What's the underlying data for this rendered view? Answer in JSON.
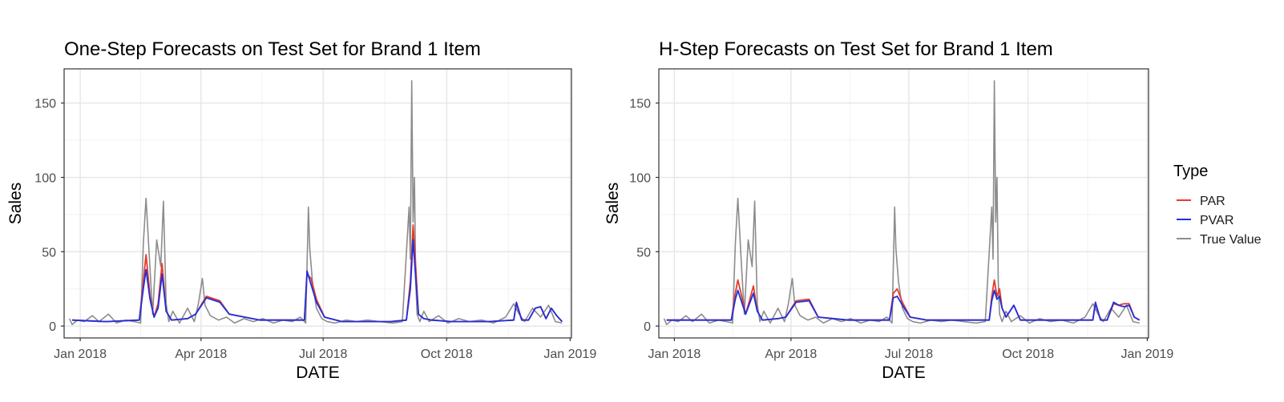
{
  "legend": {
    "title": "Type",
    "entries": [
      {
        "label": "PAR",
        "color": "#e8392b"
      },
      {
        "label": "PVAR",
        "color": "#1f2fe0"
      },
      {
        "label": "True Value",
        "color": "#8c8c8c"
      }
    ]
  },
  "colors": {
    "par": "#e8392b",
    "pvar": "#1f2fe0",
    "true": "#8c8c8c",
    "panel_border": "#333333",
    "grid_major": "#e6e6e6",
    "grid_minor": "#f2f2f2"
  },
  "chart_data": [
    {
      "type": "line",
      "title": "One-Step Forecasts on Test Set for Brand 1 Item",
      "xlabel": "DATE",
      "ylabel": "Sales",
      "xticks": [
        "Jan 2018",
        "Apr 2018",
        "Jul 2018",
        "Oct 2018",
        "Jan 2019"
      ],
      "xtick_dates": [
        "2018-01-01",
        "2018-04-01",
        "2018-07-01",
        "2018-10-01",
        "2019-01-01"
      ],
      "yticks": [
        0,
        50,
        100,
        150
      ],
      "xlim": [
        "2017-12-20",
        "2019-01-02"
      ],
      "ylim": [
        -8,
        173
      ],
      "grid": true,
      "series": [
        {
          "name": "True Value",
          "x": [
            "2017-12-24",
            "2017-12-26",
            "2017-12-30",
            "2018-01-04",
            "2018-01-10",
            "2018-01-15",
            "2018-01-22",
            "2018-01-28",
            "2018-02-04",
            "2018-02-10",
            "2018-02-15",
            "2018-02-17",
            "2018-02-19",
            "2018-02-22",
            "2018-02-24",
            "2018-02-27",
            "2018-03-02",
            "2018-03-04",
            "2018-03-06",
            "2018-03-08",
            "2018-03-11",
            "2018-03-16",
            "2018-03-22",
            "2018-03-27",
            "2018-03-30",
            "2018-04-02",
            "2018-04-04",
            "2018-04-08",
            "2018-04-14",
            "2018-04-20",
            "2018-04-26",
            "2018-05-03",
            "2018-05-10",
            "2018-05-17",
            "2018-05-25",
            "2018-06-01",
            "2018-06-08",
            "2018-06-14",
            "2018-06-18",
            "2018-06-20",
            "2018-06-21",
            "2018-06-23",
            "2018-06-26",
            "2018-06-30",
            "2018-07-04",
            "2018-07-10",
            "2018-07-18",
            "2018-07-26",
            "2018-08-03",
            "2018-08-12",
            "2018-08-22",
            "2018-08-29",
            "2018-09-03",
            "2018-09-04",
            "2018-09-05",
            "2018-09-06",
            "2018-09-07",
            "2018-09-08",
            "2018-09-09",
            "2018-09-11",
            "2018-09-14",
            "2018-09-18",
            "2018-09-25",
            "2018-10-02",
            "2018-10-10",
            "2018-10-18",
            "2018-10-27",
            "2018-11-05",
            "2018-11-14",
            "2018-11-20",
            "2018-11-24",
            "2018-11-28",
            "2018-12-04",
            "2018-12-10",
            "2018-12-16",
            "2018-12-21",
            "2018-12-26"
          ],
          "y": [
            5,
            1,
            4,
            3,
            7,
            3,
            8,
            2,
            4,
            3,
            2,
            55,
            86,
            38,
            8,
            58,
            40,
            84,
            15,
            3,
            10,
            2,
            12,
            3,
            15,
            32,
            14,
            7,
            4,
            6,
            2,
            5,
            3,
            5,
            2,
            4,
            3,
            6,
            2,
            80,
            52,
            30,
            12,
            5,
            3,
            2,
            4,
            3,
            4,
            3,
            2,
            3,
            80,
            45,
            165,
            70,
            100,
            30,
            8,
            3,
            10,
            3,
            7,
            2,
            5,
            3,
            4,
            2,
            6,
            15,
            8,
            3,
            12,
            6,
            14,
            3,
            2
          ]
        },
        {
          "name": "PAR",
          "x": [
            "2017-12-26",
            "2018-01-20",
            "2018-02-14",
            "2018-02-17",
            "2018-02-19",
            "2018-02-22",
            "2018-02-25",
            "2018-02-28",
            "2018-03-03",
            "2018-03-06",
            "2018-03-10",
            "2018-03-22",
            "2018-03-28",
            "2018-04-05",
            "2018-04-15",
            "2018-04-22",
            "2018-05-15",
            "2018-06-17",
            "2018-06-19",
            "2018-06-22",
            "2018-06-26",
            "2018-07-02",
            "2018-07-15",
            "2018-08-20",
            "2018-09-01",
            "2018-09-04",
            "2018-09-06",
            "2018-09-08",
            "2018-09-10",
            "2018-09-14",
            "2018-09-20",
            "2018-10-05",
            "2018-11-01",
            "2018-11-20",
            "2018-11-22",
            "2018-11-26",
            "2018-12-01",
            "2018-12-06",
            "2018-12-10",
            "2018-12-14",
            "2018-12-18",
            "2018-12-22",
            "2018-12-26"
          ],
          "y": [
            4,
            3,
            4,
            30,
            48,
            20,
            6,
            15,
            42,
            10,
            4,
            5,
            8,
            20,
            17,
            8,
            4,
            4,
            35,
            32,
            18,
            6,
            3,
            3,
            4,
            30,
            68,
            40,
            8,
            5,
            4,
            3,
            3,
            4,
            15,
            4,
            4,
            12,
            13,
            5,
            12,
            7,
            3
          ]
        },
        {
          "name": "PVAR",
          "x": [
            "2017-12-26",
            "2018-01-20",
            "2018-02-14",
            "2018-02-17",
            "2018-02-19",
            "2018-02-22",
            "2018-02-25",
            "2018-02-28",
            "2018-03-03",
            "2018-03-06",
            "2018-03-10",
            "2018-03-22",
            "2018-03-28",
            "2018-04-05",
            "2018-04-15",
            "2018-04-22",
            "2018-05-15",
            "2018-06-17",
            "2018-06-19",
            "2018-06-22",
            "2018-06-26",
            "2018-07-02",
            "2018-07-15",
            "2018-08-20",
            "2018-09-01",
            "2018-09-04",
            "2018-09-06",
            "2018-09-08",
            "2018-09-10",
            "2018-09-14",
            "2018-09-20",
            "2018-10-05",
            "2018-11-01",
            "2018-11-20",
            "2018-11-22",
            "2018-11-26",
            "2018-12-01",
            "2018-12-06",
            "2018-12-10",
            "2018-12-14",
            "2018-12-18",
            "2018-12-22",
            "2018-12-26"
          ],
          "y": [
            4,
            3,
            4,
            25,
            38,
            18,
            6,
            12,
            35,
            10,
            4,
            5,
            8,
            19,
            16,
            8,
            4,
            4,
            37,
            28,
            16,
            6,
            3,
            3,
            4,
            25,
            58,
            32,
            8,
            5,
            4,
            3,
            3,
            4,
            16,
            4,
            4,
            12,
            13,
            5,
            12,
            7,
            3
          ]
        }
      ]
    },
    {
      "type": "line",
      "title": "H-Step Forecasts on Test Set for Brand 1 Item",
      "xlabel": "DATE",
      "ylabel": "Sales",
      "xticks": [
        "Jan 2018",
        "Apr 2018",
        "Jul 2018",
        "Oct 2018",
        "Jan 2019"
      ],
      "xtick_dates": [
        "2018-01-01",
        "2018-04-01",
        "2018-07-01",
        "2018-10-01",
        "2019-01-01"
      ],
      "yticks": [
        0,
        50,
        100,
        150
      ],
      "xlim": [
        "2017-12-20",
        "2019-01-02"
      ],
      "ylim": [
        -8,
        173
      ],
      "grid": true,
      "series": [
        {
          "name": "True Value",
          "x": [
            "2017-12-24",
            "2017-12-26",
            "2017-12-30",
            "2018-01-04",
            "2018-01-10",
            "2018-01-15",
            "2018-01-22",
            "2018-01-28",
            "2018-02-04",
            "2018-02-10",
            "2018-02-15",
            "2018-02-17",
            "2018-02-19",
            "2018-02-22",
            "2018-02-24",
            "2018-02-27",
            "2018-03-02",
            "2018-03-04",
            "2018-03-06",
            "2018-03-08",
            "2018-03-11",
            "2018-03-16",
            "2018-03-22",
            "2018-03-27",
            "2018-03-30",
            "2018-04-02",
            "2018-04-04",
            "2018-04-08",
            "2018-04-14",
            "2018-04-20",
            "2018-04-26",
            "2018-05-03",
            "2018-05-10",
            "2018-05-17",
            "2018-05-25",
            "2018-06-01",
            "2018-06-08",
            "2018-06-14",
            "2018-06-18",
            "2018-06-20",
            "2018-06-21",
            "2018-06-23",
            "2018-06-26",
            "2018-06-30",
            "2018-07-04",
            "2018-07-10",
            "2018-07-18",
            "2018-07-26",
            "2018-08-03",
            "2018-08-12",
            "2018-08-22",
            "2018-08-29",
            "2018-09-03",
            "2018-09-04",
            "2018-09-05",
            "2018-09-06",
            "2018-09-07",
            "2018-09-08",
            "2018-09-09",
            "2018-09-11",
            "2018-09-14",
            "2018-09-18",
            "2018-09-25",
            "2018-10-02",
            "2018-10-10",
            "2018-10-18",
            "2018-10-27",
            "2018-11-05",
            "2018-11-14",
            "2018-11-20",
            "2018-11-24",
            "2018-11-28",
            "2018-12-04",
            "2018-12-10",
            "2018-12-16",
            "2018-12-21",
            "2018-12-26"
          ],
          "y": [
            5,
            1,
            4,
            3,
            7,
            3,
            8,
            2,
            4,
            3,
            2,
            55,
            86,
            38,
            8,
            58,
            40,
            84,
            15,
            3,
            10,
            2,
            12,
            3,
            15,
            32,
            14,
            7,
            4,
            6,
            2,
            5,
            3,
            5,
            2,
            4,
            3,
            6,
            2,
            80,
            52,
            30,
            12,
            5,
            3,
            2,
            4,
            3,
            4,
            3,
            2,
            3,
            80,
            45,
            165,
            70,
            100,
            30,
            8,
            3,
            10,
            3,
            7,
            2,
            5,
            3,
            4,
            2,
            6,
            15,
            8,
            3,
            12,
            6,
            14,
            3,
            2
          ]
        },
        {
          "name": "PAR",
          "x": [
            "2017-12-26",
            "2018-01-20",
            "2018-02-14",
            "2018-02-17",
            "2018-02-19",
            "2018-02-22",
            "2018-02-25",
            "2018-02-28",
            "2018-03-03",
            "2018-03-06",
            "2018-03-10",
            "2018-03-22",
            "2018-03-28",
            "2018-04-05",
            "2018-04-15",
            "2018-04-22",
            "2018-05-15",
            "2018-06-16",
            "2018-06-19",
            "2018-06-22",
            "2018-06-26",
            "2018-07-02",
            "2018-07-15",
            "2018-08-20",
            "2018-09-01",
            "2018-09-03",
            "2018-09-05",
            "2018-09-07",
            "2018-09-09",
            "2018-09-11",
            "2018-09-14",
            "2018-09-20",
            "2018-09-25",
            "2018-10-05",
            "2018-11-01",
            "2018-11-20",
            "2018-11-22",
            "2018-11-26",
            "2018-12-01",
            "2018-12-06",
            "2018-12-10",
            "2018-12-14",
            "2018-12-18",
            "2018-12-22",
            "2018-12-26"
          ],
          "y": [
            4,
            4,
            4,
            22,
            31,
            20,
            8,
            17,
            27,
            10,
            4,
            5,
            6,
            17,
            18,
            6,
            4,
            4,
            22,
            25,
            16,
            6,
            4,
            4,
            4,
            20,
            31,
            20,
            25,
            12,
            6,
            14,
            4,
            4,
            4,
            4,
            15,
            4,
            4,
            15,
            14,
            15,
            15,
            6,
            4
          ]
        },
        {
          "name": "PVAR",
          "x": [
            "2017-12-26",
            "2018-01-20",
            "2018-02-14",
            "2018-02-17",
            "2018-02-19",
            "2018-02-22",
            "2018-02-25",
            "2018-02-28",
            "2018-03-03",
            "2018-03-06",
            "2018-03-10",
            "2018-03-22",
            "2018-03-28",
            "2018-04-05",
            "2018-04-15",
            "2018-04-22",
            "2018-05-15",
            "2018-06-16",
            "2018-06-19",
            "2018-06-22",
            "2018-06-26",
            "2018-07-02",
            "2018-07-15",
            "2018-08-20",
            "2018-09-01",
            "2018-09-03",
            "2018-09-05",
            "2018-09-07",
            "2018-09-09",
            "2018-09-11",
            "2018-09-14",
            "2018-09-20",
            "2018-09-25",
            "2018-10-05",
            "2018-11-01",
            "2018-11-20",
            "2018-11-22",
            "2018-11-26",
            "2018-12-01",
            "2018-12-06",
            "2018-12-10",
            "2018-12-14",
            "2018-12-18",
            "2018-12-22",
            "2018-12-26"
          ],
          "y": [
            4,
            4,
            4,
            18,
            24,
            16,
            8,
            15,
            22,
            10,
            4,
            5,
            6,
            16,
            17,
            6,
            4,
            4,
            19,
            20,
            14,
            6,
            4,
            4,
            4,
            17,
            24,
            18,
            20,
            12,
            6,
            14,
            4,
            4,
            4,
            4,
            16,
            4,
            4,
            16,
            14,
            13,
            14,
            6,
            4
          ]
        }
      ]
    }
  ]
}
